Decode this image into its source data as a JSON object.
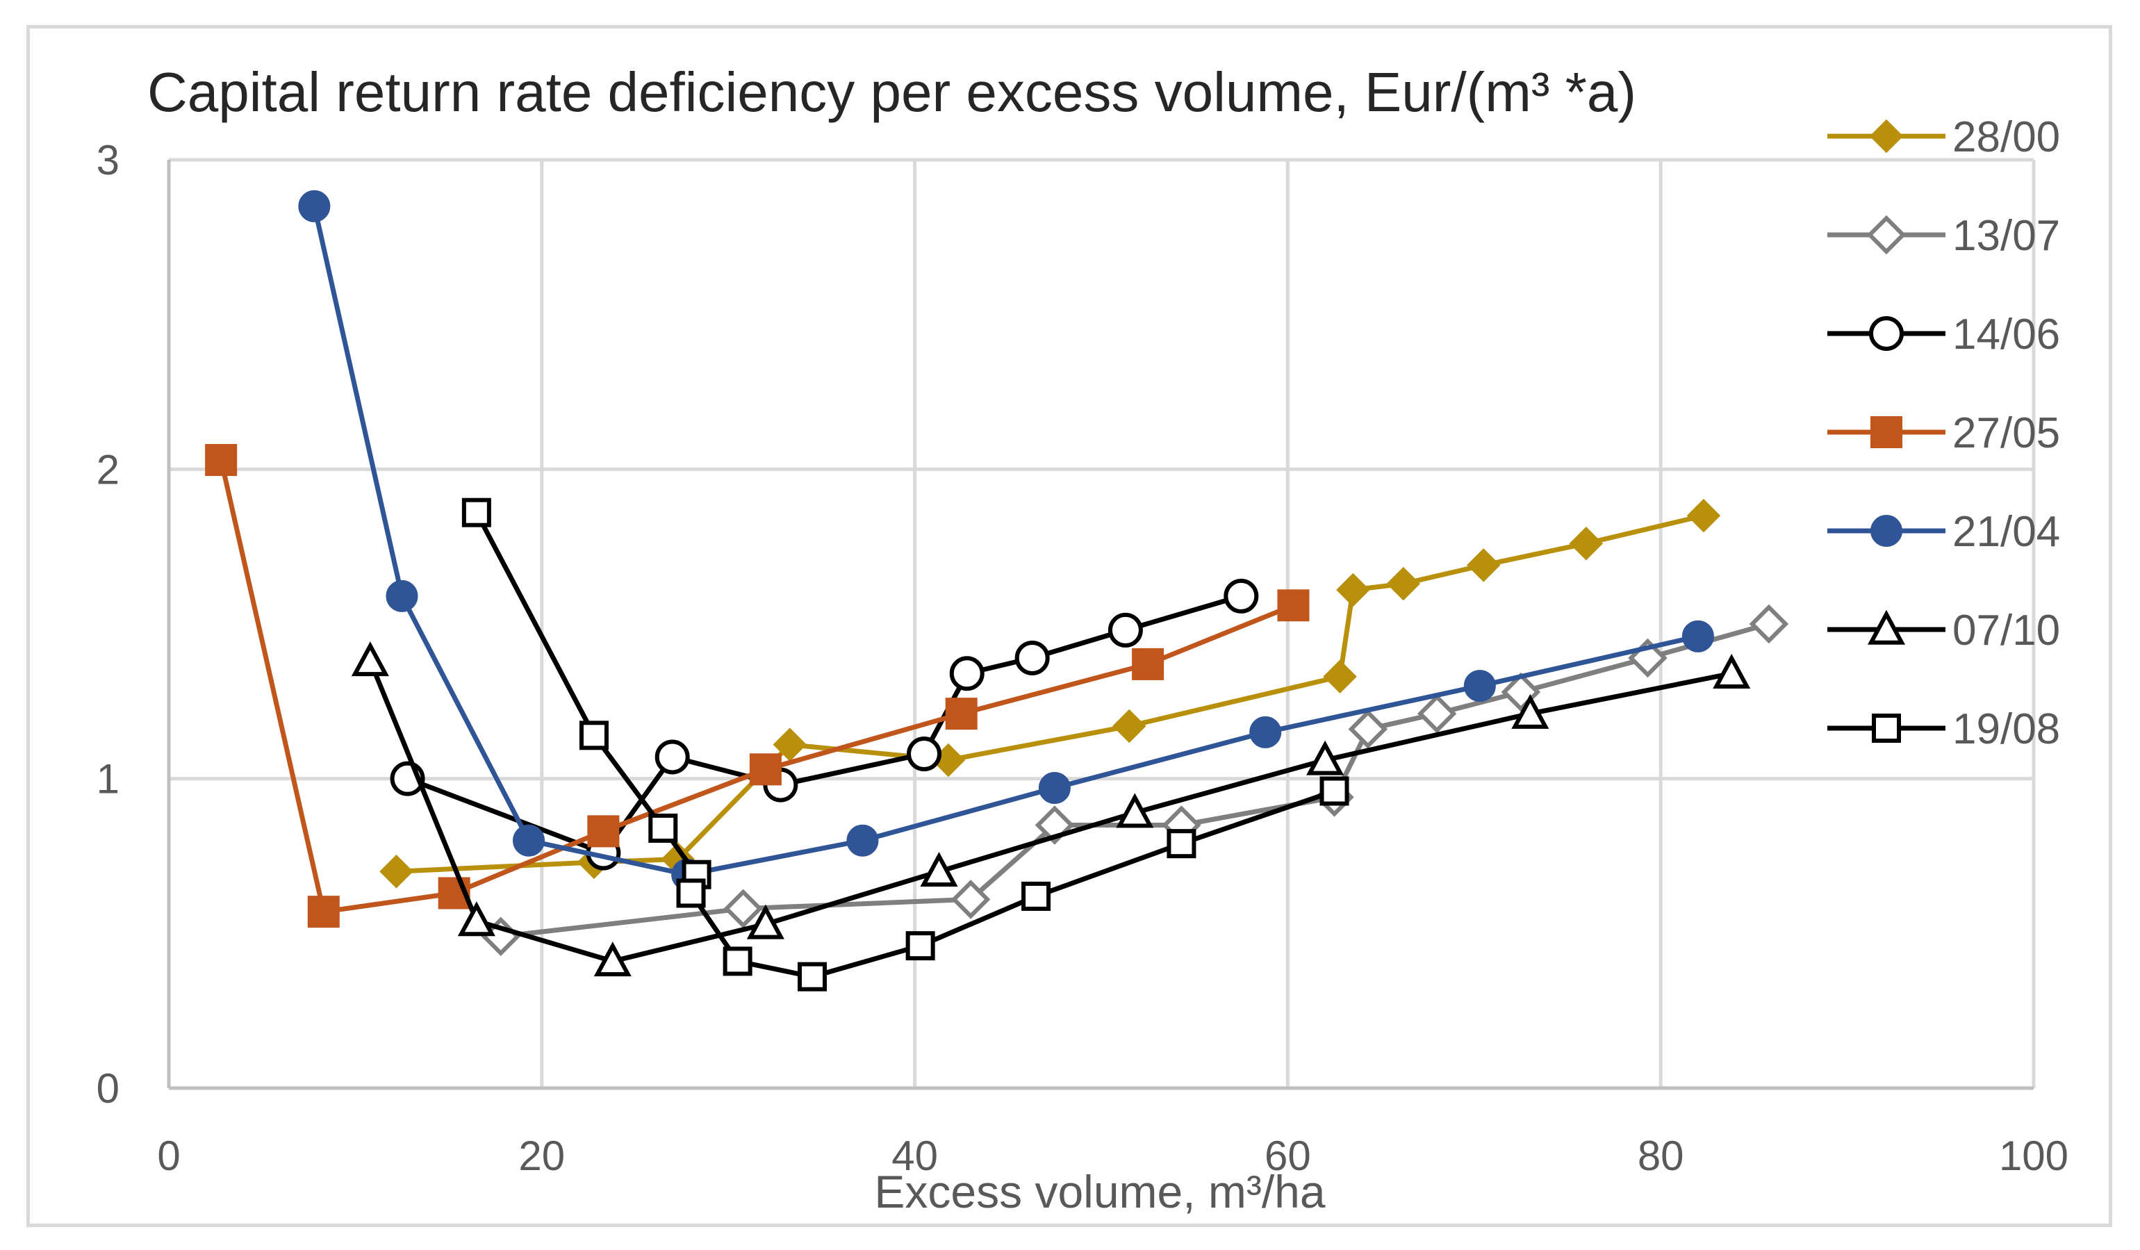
{
  "chart_data": {
    "type": "line",
    "title": "Capital return rate deficiency per excess volume,  Eur/(m³ *a)",
    "xlabel": "Excess volume, m³/ha",
    "ylabel": "",
    "xlim": [
      0,
      100
    ],
    "ylim": [
      0,
      3
    ],
    "x_ticks": [
      "0",
      "20",
      "40",
      "60",
      "80",
      "100"
    ],
    "y_ticks": [
      "0",
      "1",
      "2",
      "3"
    ],
    "grid": true,
    "legend_position": "right",
    "series": [
      {
        "name": "28/00",
        "color": "#b8900c",
        "marker": "diamond-filled",
        "x": [
          12.2,
          22.8,
          27.3,
          33.3,
          41.8,
          51.5,
          62.8,
          63.5,
          66.2,
          70.5,
          76.0,
          82.3
        ],
        "y": [
          0.7,
          0.73,
          0.74,
          1.11,
          1.06,
          1.17,
          1.33,
          1.61,
          1.63,
          1.69,
          1.76,
          1.85
        ]
      },
      {
        "name": "13/07",
        "color": "#7f7f7f",
        "marker": "diamond-open",
        "x": [
          17.8,
          30.8,
          43.0,
          47.5,
          54.3,
          62.5,
          64.3,
          68.0,
          72.5,
          79.3,
          85.8
        ],
        "y": [
          0.49,
          0.58,
          0.61,
          0.85,
          0.85,
          0.94,
          1.16,
          1.21,
          1.28,
          1.39,
          1.5
        ]
      },
      {
        "name": "14/06",
        "color": "#000000",
        "marker": "circle-open",
        "x": [
          12.8,
          23.3,
          27.0,
          32.8,
          40.5,
          42.8,
          46.3,
          51.3,
          57.5
        ],
        "y": [
          1.0,
          0.76,
          1.07,
          0.98,
          1.08,
          1.34,
          1.39,
          1.48,
          1.59
        ]
      },
      {
        "name": "27/05",
        "color": "#c0561b",
        "marker": "square-filled",
        "x": [
          2.8,
          8.3,
          15.3,
          23.3,
          32.0,
          42.5,
          52.5,
          60.3
        ],
        "y": [
          2.03,
          0.57,
          0.63,
          0.83,
          1.03,
          1.21,
          1.37,
          1.56
        ]
      },
      {
        "name": "21/04",
        "color": "#2f5597",
        "marker": "circle-filled",
        "x": [
          7.8,
          12.5,
          19.3,
          27.8,
          37.2,
          47.5,
          58.8,
          70.3,
          82.0
        ],
        "y": [
          2.85,
          1.59,
          0.8,
          0.69,
          0.8,
          0.97,
          1.15,
          1.3,
          1.46
        ]
      },
      {
        "name": "07/10",
        "color": "#000000",
        "marker": "triangle-open",
        "x": [
          10.8,
          16.5,
          23.8,
          32.0,
          41.3,
          51.8,
          62.0,
          73.0,
          83.8
        ],
        "y": [
          1.38,
          0.54,
          0.41,
          0.53,
          0.7,
          0.89,
          1.06,
          1.21,
          1.34
        ]
      },
      {
        "name": "19/08",
        "color": "#000000",
        "marker": "square-open",
        "x": [
          16.5,
          22.8,
          26.5,
          28.3,
          28.0,
          30.5,
          34.5,
          40.3,
          46.5,
          54.3,
          62.5
        ],
        "y": [
          1.86,
          1.14,
          0.84,
          0.69,
          0.63,
          0.41,
          0.36,
          0.46,
          0.62,
          0.79,
          0.96
        ]
      }
    ]
  }
}
